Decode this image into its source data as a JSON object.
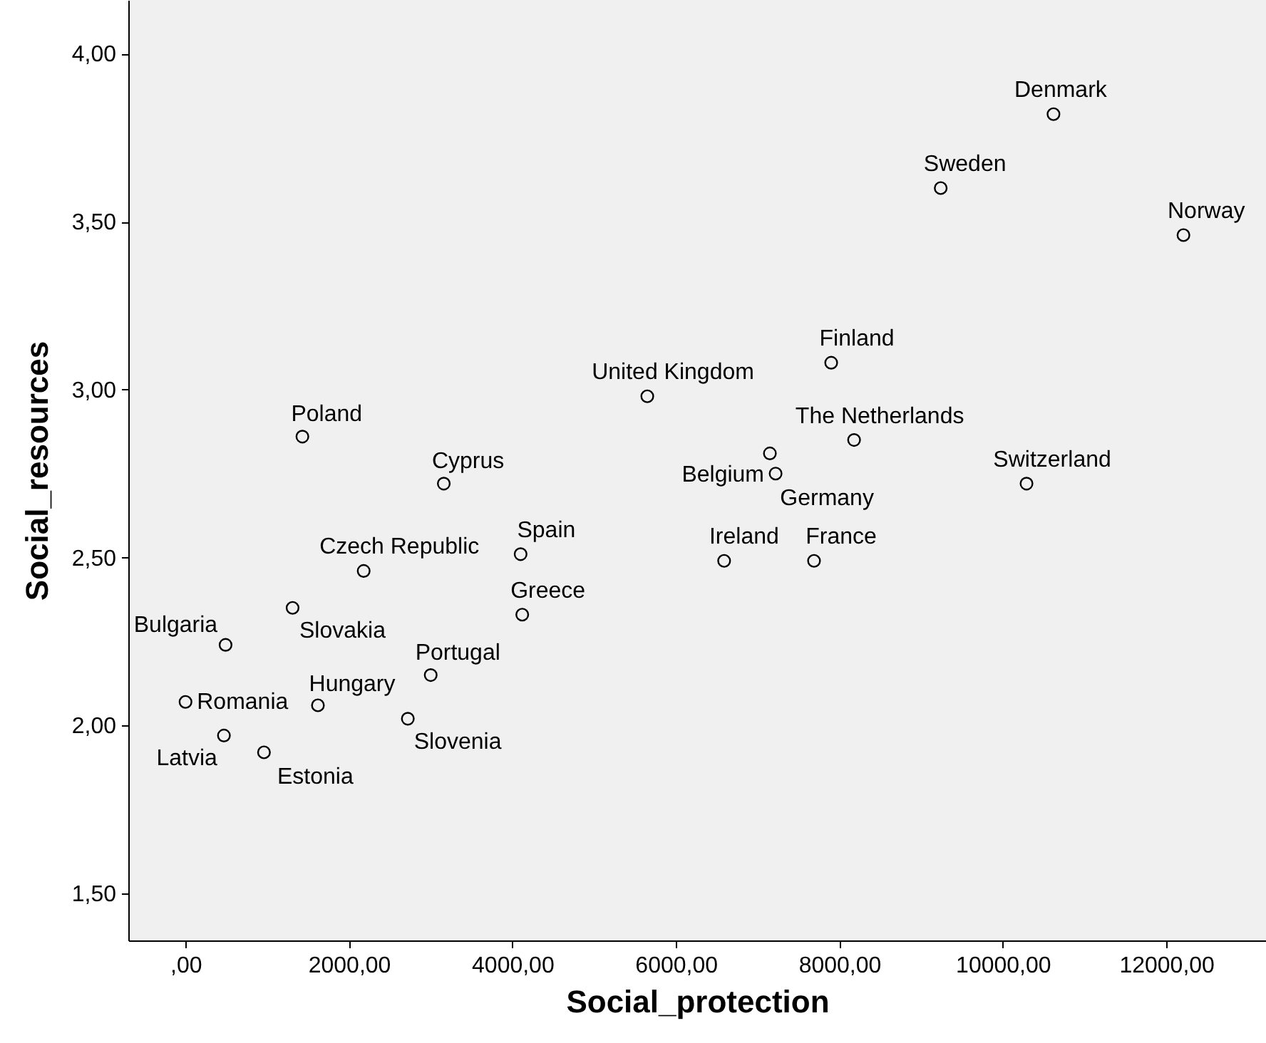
{
  "chart_data": {
    "type": "scatter",
    "xlabel": "Social_protection",
    "ylabel": "Social_resources",
    "marker": "circle",
    "grid": false,
    "x": [
      10620,
      9240,
      12210,
      7900,
      5650,
      8180,
      1430,
      3160,
      10290,
      7150,
      7220,
      4100,
      6590,
      7690,
      2180,
      4120,
      1310,
      490,
      3000,
      0,
      1620,
      2720,
      470,
      960
    ],
    "values": [
      3.82,
      3.6,
      3.46,
      3.08,
      2.98,
      2.85,
      2.86,
      2.72,
      2.72,
      2.81,
      2.75,
      2.51,
      2.49,
      2.49,
      2.46,
      2.33,
      2.35,
      2.24,
      2.15,
      2.07,
      2.06,
      2.02,
      1.97,
      1.92
    ],
    "color": "#000000",
    "xlim": [
      -700,
      13220
    ],
    "ylim": [
      1.36,
      4.16
    ],
    "xticks": [
      {
        "value": 0,
        "label": ",00"
      },
      {
        "value": 2000,
        "label": "2000,00"
      },
      {
        "value": 4000,
        "label": "4000,00"
      },
      {
        "value": 6000,
        "label": "6000,00"
      },
      {
        "value": 8000,
        "label": "8000,00"
      },
      {
        "value": 10000,
        "label": "10000,00"
      },
      {
        "value": 12000,
        "label": "12000,00"
      }
    ],
    "yticks": [
      {
        "value": 1.5,
        "label": "1,50"
      },
      {
        "value": 2,
        "label": "2,00"
      },
      {
        "value": 2.5,
        "label": "2,50"
      },
      {
        "value": 3,
        "label": "3,00"
      },
      {
        "value": 3.5,
        "label": "3,50"
      },
      {
        "value": 4,
        "label": "4,00"
      }
    ],
    "annotations": [
      {
        "text": "Denmark",
        "x": 10620,
        "y": 3.82
      },
      {
        "text": "Sweden",
        "x": 9240,
        "y": 3.6
      },
      {
        "text": "Norway",
        "x": 12210,
        "y": 3.46
      },
      {
        "text": "Finland",
        "x": 7900,
        "y": 3.08
      },
      {
        "text": "United Kingdom",
        "x": 5650,
        "y": 2.98
      },
      {
        "text": "The Netherlands",
        "x": 8180,
        "y": 2.85
      },
      {
        "text": "Poland",
        "x": 1430,
        "y": 2.86
      },
      {
        "text": "Cyprus",
        "x": 3160,
        "y": 2.72
      },
      {
        "text": "Switzerland",
        "x": 10290,
        "y": 2.72
      },
      {
        "text": "Belgium",
        "x": 7150,
        "y": 2.81
      },
      {
        "text": "Germany",
        "x": 7220,
        "y": 2.75
      },
      {
        "text": "Spain",
        "x": 4100,
        "y": 2.51
      },
      {
        "text": "Ireland",
        "x": 6590,
        "y": 2.49
      },
      {
        "text": "France",
        "x": 7690,
        "y": 2.49
      },
      {
        "text": "Czech Republic",
        "x": 2180,
        "y": 2.46
      },
      {
        "text": "Greece",
        "x": 4120,
        "y": 2.33
      },
      {
        "text": "Slovakia",
        "x": 1310,
        "y": 2.35
      },
      {
        "text": "Bulgaria",
        "x": 490,
        "y": 2.24
      },
      {
        "text": "Portugal",
        "x": 3000,
        "y": 2.15
      },
      {
        "text": "Romania",
        "x": 0,
        "y": 2.07
      },
      {
        "text": "Hungary",
        "x": 1620,
        "y": 2.06
      },
      {
        "text": "Slovenia",
        "x": 2720,
        "y": 2.02
      },
      {
        "text": "Latvia",
        "x": 470,
        "y": 1.97
      },
      {
        "text": "Estonia",
        "x": 960,
        "y": 1.92
      }
    ]
  }
}
